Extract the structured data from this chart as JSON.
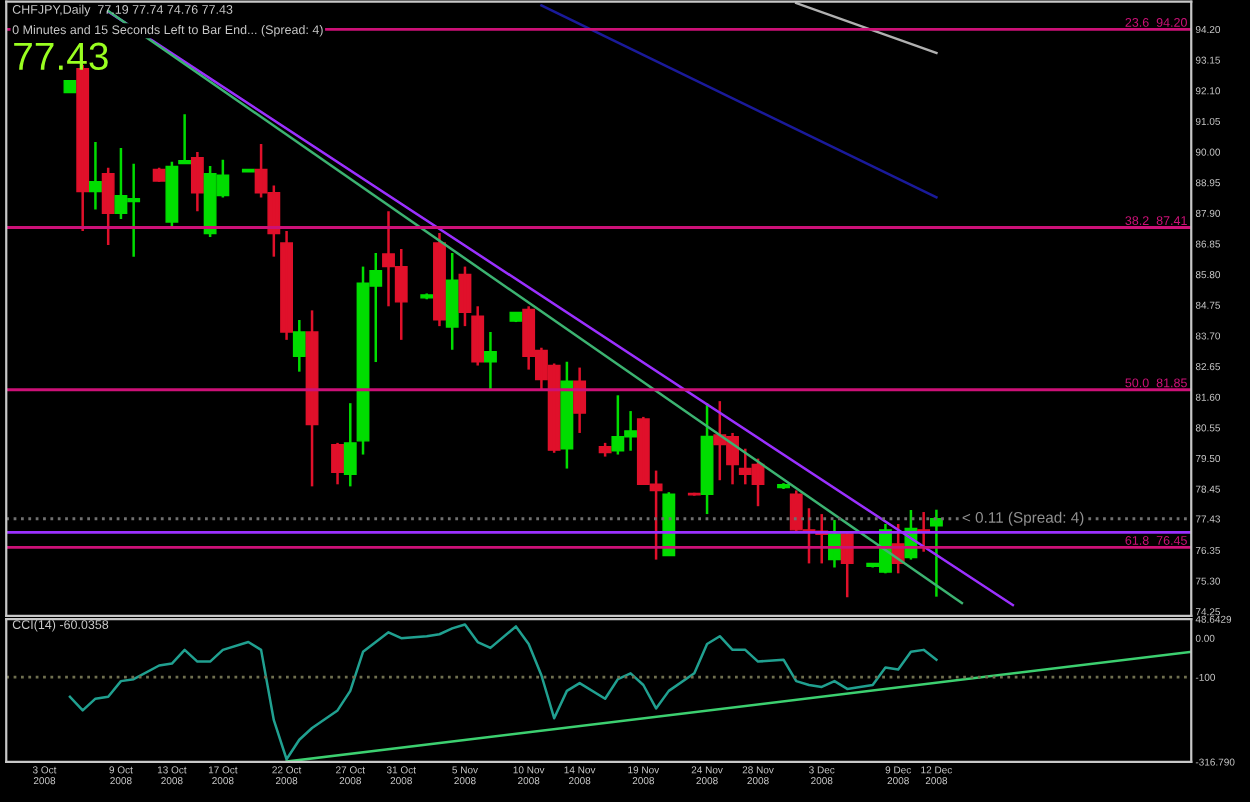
{
  "chart_data": [
    {
      "type": "candlestick",
      "title": "CHFJPY,Daily  77.19 77.74 74.76 77.43",
      "subtitle": "0 Minutes and 15 Seconds Left to Bar End... (Spread: 4)",
      "annotations": [
        "77.43",
        {
          "text": "< 0.11 (Spread: 4)",
          "x": "2008-12-14",
          "y": 77.43
        }
      ],
      "x": [
        "2008-10-05",
        "2008-10-06",
        "2008-10-07",
        "2008-10-08",
        "2008-10-09",
        "2008-10-10",
        "2008-10-12",
        "2008-10-13",
        "2008-10-14",
        "2008-10-15",
        "2008-10-16",
        "2008-10-17",
        "2008-10-19",
        "2008-10-20",
        "2008-10-21",
        "2008-10-22",
        "2008-10-23",
        "2008-10-24",
        "2008-10-26",
        "2008-10-27",
        "2008-10-28",
        "2008-10-29",
        "2008-10-30",
        "2008-10-31",
        "2008-11-02",
        "2008-11-03",
        "2008-11-04",
        "2008-11-05",
        "2008-11-06",
        "2008-11-07",
        "2008-11-09",
        "2008-11-10",
        "2008-11-11",
        "2008-11-12",
        "2008-11-13",
        "2008-11-14",
        "2008-11-16",
        "2008-11-17",
        "2008-11-18",
        "2008-11-19",
        "2008-11-20",
        "2008-11-21",
        "2008-11-23",
        "2008-11-24",
        "2008-11-25",
        "2008-11-26",
        "2008-11-27",
        "2008-11-28",
        "2008-11-30",
        "2008-12-01",
        "2008-12-02",
        "2008-12-03",
        "2008-12-04",
        "2008-12-05",
        "2008-12-07",
        "2008-12-08",
        "2008-12-09",
        "2008-12-10",
        "2008-12-11",
        "2008-12-12"
      ],
      "ohlc": [
        [
          92.03,
          92.44,
          92.03,
          92.44
        ],
        [
          92.85,
          92.98,
          87.29,
          88.64
        ],
        [
          88.64,
          90.34,
          88.03,
          88.98
        ],
        [
          89.25,
          89.46,
          86.81,
          87.9
        ],
        [
          87.9,
          90.13,
          87.7,
          88.5
        ],
        [
          88.3,
          89.59,
          86.41,
          88.4
        ],
        [
          89.4,
          89.46,
          88.98,
          89.0
        ],
        [
          87.6,
          89.66,
          87.42,
          89.5
        ],
        [
          89.6,
          91.29,
          89.59,
          89.7
        ],
        [
          89.8,
          90.0,
          87.97,
          88.6
        ],
        [
          87.2,
          89.52,
          87.08,
          89.25
        ],
        [
          88.5,
          89.73,
          88.44,
          89.2
        ],
        [
          89.32,
          89.4,
          89.32,
          89.4
        ],
        [
          89.4,
          90.27,
          88.44,
          88.6
        ],
        [
          88.6,
          88.85,
          86.41,
          87.2
        ],
        [
          86.88,
          87.29,
          83.56,
          83.83
        ],
        [
          83.0,
          84.24,
          82.47,
          83.83
        ],
        [
          83.83,
          84.57,
          78.54,
          80.66
        ],
        [
          79.97,
          80.03,
          78.61,
          79.02
        ],
        [
          78.95,
          81.39,
          78.54,
          80.03
        ],
        [
          80.1,
          86.07,
          79.63,
          85.5
        ],
        [
          85.4,
          86.54,
          82.8,
          85.93
        ],
        [
          86.5,
          87.97,
          84.71,
          86.07
        ],
        [
          86.07,
          86.67,
          83.56,
          84.86
        ],
        [
          85.0,
          85.15,
          84.95,
          85.1
        ],
        [
          86.88,
          87.22,
          84.03,
          84.25
        ],
        [
          84.0,
          86.54,
          83.22,
          85.6
        ],
        [
          85.8,
          86.07,
          84.03,
          84.5
        ],
        [
          84.37,
          84.71,
          82.68,
          82.81
        ],
        [
          82.81,
          83.83,
          81.86,
          83.15
        ],
        [
          84.2,
          84.51,
          84.17,
          84.5
        ],
        [
          84.6,
          84.71,
          82.54,
          83.0
        ],
        [
          83.2,
          83.29,
          81.86,
          82.2
        ],
        [
          82.68,
          82.75,
          79.69,
          79.78
        ],
        [
          79.83,
          82.81,
          79.15,
          82.14
        ],
        [
          82.14,
          82.61,
          80.37,
          81.05
        ],
        [
          79.9,
          80.03,
          79.56,
          79.7
        ],
        [
          79.76,
          81.66,
          79.63,
          80.24
        ],
        [
          80.24,
          81.12,
          79.76,
          80.44
        ],
        [
          80.85,
          80.92,
          78.61,
          78.61
        ],
        [
          78.61,
          79.08,
          76.03,
          78.4
        ],
        [
          76.17,
          78.34,
          76.17,
          78.27
        ],
        [
          78.3,
          78.32,
          78.22,
          78.25
        ],
        [
          78.27,
          81.39,
          77.59,
          80.25
        ],
        [
          80.3,
          81.46,
          78.75,
          79.97
        ],
        [
          80.24,
          80.37,
          78.61,
          79.29
        ],
        [
          79.15,
          79.83,
          78.61,
          78.95
        ],
        [
          79.29,
          79.49,
          77.86,
          78.61
        ],
        [
          78.5,
          78.65,
          78.45,
          78.6
        ],
        [
          78.27,
          78.4,
          76.98,
          77.05
        ],
        [
          77.05,
          77.79,
          75.9,
          77.0
        ],
        [
          77.0,
          77.59,
          75.9,
          76.9
        ],
        [
          76.03,
          77.39,
          75.76,
          76.91
        ],
        [
          76.91,
          76.98,
          74.74,
          75.9
        ],
        [
          75.8,
          75.9,
          75.76,
          75.9
        ],
        [
          75.6,
          77.25,
          75.56,
          77.05
        ],
        [
          76.57,
          77.25,
          75.56,
          75.9
        ],
        [
          76.1,
          77.73,
          76.03,
          77.1
        ],
        [
          77.05,
          77.66,
          76.3,
          77.0
        ],
        [
          77.19,
          77.74,
          74.76,
          77.43
        ]
      ],
      "series": [
        {
          "type": "line",
          "color": "#9b30ff",
          "x": [
            "2008-10-08",
            "2008-12-18"
          ],
          "values": [
            94.81,
            74.47
          ]
        },
        {
          "type": "line",
          "color": "#3cb371",
          "x": [
            "2008-10-08",
            "2008-12-14"
          ],
          "values": [
            94.83,
            74.54
          ]
        },
        {
          "type": "line",
          "color": "#1a1a9a",
          "x": [
            "2008-11-11",
            "2008-12-12"
          ],
          "values": [
            95.02,
            88.44
          ]
        },
        {
          "type": "line",
          "color": "#b0b0b0",
          "x": [
            "2008-12-01",
            "2008-12-12"
          ],
          "values": [
            95.1,
            93.39
          ]
        }
      ],
      "ref_lines": [
        {
          "axis": "y",
          "value": 94.2,
          "label": "23.6  94.20",
          "color": "#cc1177"
        },
        {
          "axis": "y",
          "value": 87.41,
          "label": "38.2  87.41",
          "color": "#cc1177"
        },
        {
          "axis": "y",
          "value": 81.85,
          "label": "50.0  81.85",
          "color": "#cc1177"
        },
        {
          "axis": "y",
          "value": 76.45,
          "label": "61.8  76.45",
          "color": "#cc1177"
        },
        {
          "axis": "y",
          "value": 77.43,
          "color": "#707070",
          "line_style": "dotted"
        },
        {
          "axis": "y",
          "value": 76.96,
          "color": "#9b30ff"
        }
      ],
      "xlim": [
        "2008-09-30",
        "2009-01-01"
      ],
      "ylim": [
        74.1,
        95.15
      ],
      "yticks": [
        {
          "value": 94.2,
          "label": "94.20"
        },
        93.15,
        {
          "value": 92.1,
          "label": "92.10"
        },
        91.05,
        {
          "value": 90.0,
          "label": "90.00"
        },
        88.95,
        {
          "value": 87.9,
          "label": "87.90"
        },
        86.85,
        {
          "value": 85.8,
          "label": "85.80"
        },
        84.75,
        {
          "value": 83.7,
          "label": "83.70"
        },
        82.65,
        {
          "value": 81.6,
          "label": "81.60"
        },
        80.55,
        {
          "value": 79.5,
          "label": "79.50"
        },
        78.45,
        77.43,
        76.35,
        {
          "value": 75.3,
          "label": "75.30"
        },
        74.25
      ],
      "tick_labels": "y"
    },
    {
      "type": "line",
      "title": "CCI(14) -60.0358",
      "x": [
        "2008-10-05",
        "2008-10-06",
        "2008-10-07",
        "2008-10-08",
        "2008-10-09",
        "2008-10-10",
        "2008-10-12",
        "2008-10-13",
        "2008-10-14",
        "2008-10-15",
        "2008-10-16",
        "2008-10-17",
        "2008-10-19",
        "2008-10-20",
        "2008-10-21",
        "2008-10-22",
        "2008-10-23",
        "2008-10-24",
        "2008-10-26",
        "2008-10-27",
        "2008-10-28",
        "2008-10-29",
        "2008-10-30",
        "2008-10-31",
        "2008-11-02",
        "2008-11-03",
        "2008-11-04",
        "2008-11-05",
        "2008-11-06",
        "2008-11-07",
        "2008-11-09",
        "2008-11-10",
        "2008-11-11",
        "2008-11-12",
        "2008-11-13",
        "2008-11-14",
        "2008-11-16",
        "2008-11-17",
        "2008-11-18",
        "2008-11-19",
        "2008-11-20",
        "2008-11-21",
        "2008-11-23",
        "2008-11-24",
        "2008-11-25",
        "2008-11-26",
        "2008-11-27",
        "2008-11-28",
        "2008-11-30",
        "2008-12-01",
        "2008-12-02",
        "2008-12-03",
        "2008-12-04",
        "2008-12-05",
        "2008-12-07",
        "2008-12-08",
        "2008-12-09",
        "2008-12-10",
        "2008-12-11",
        "2008-12-12"
      ],
      "series": [
        {
          "color": "#20a090",
          "values": [
            -150,
            -185,
            -155,
            -150,
            -110,
            -105,
            -70,
            -65,
            -30,
            -60,
            -60,
            -30,
            -10,
            -30,
            -210,
            -310,
            -260,
            -230,
            -185,
            -135,
            -35,
            -10,
            15,
            0,
            5,
            10,
            25,
            35,
            -10,
            -25,
            30,
            -15,
            -95,
            -205,
            -135,
            -115,
            -155,
            -105,
            -90,
            -120,
            -180,
            -135,
            -90,
            -15,
            5,
            -30,
            -30,
            -60,
            -55,
            -110,
            -120,
            -125,
            -110,
            -130,
            -120,
            -75,
            -80,
            -35,
            -30,
            -55
          ]
        },
        {
          "color": "#3cd070",
          "x": [
            "2008-10-22",
            "2009-01-01"
          ],
          "values": [
            -316,
            -35
          ]
        }
      ],
      "ref_lines": [
        {
          "axis": "y",
          "value": -100,
          "color": "#707050",
          "line_style": "dotted"
        }
      ],
      "xlim": [
        "2008-09-30",
        "2009-01-01"
      ],
      "ylim": [
        -316.79,
        48.6429
      ],
      "xticks": [
        {
          "value": "2008-10-03",
          "label": "3 Oct 2008"
        },
        {
          "value": "2008-10-09",
          "label": "9 Oct 2008"
        },
        {
          "value": "2008-10-13",
          "label": "13 Oct 2008"
        },
        {
          "value": "2008-10-17",
          "label": "17 Oct 2008"
        },
        {
          "value": "2008-10-22",
          "label": "22 Oct 2008"
        },
        {
          "value": "2008-10-27",
          "label": "27 Oct 2008"
        },
        {
          "value": "2008-10-31",
          "label": "31 Oct 2008"
        },
        {
          "value": "2008-11-05",
          "label": "5 Nov 2008"
        },
        {
          "value": "2008-11-10",
          "label": "10 Nov 2008"
        },
        {
          "value": "2008-11-14",
          "label": "14 Nov 2008"
        },
        {
          "value": "2008-11-19",
          "label": "19 Nov 2008"
        },
        {
          "value": "2008-11-24",
          "label": "24 Nov 2008"
        },
        {
          "value": "2008-11-28",
          "label": "28 Nov 2008"
        },
        {
          "value": "2008-12-03",
          "label": "3 Dec 2008"
        },
        {
          "value": "2008-12-09",
          "label": "9 Dec 2008"
        },
        {
          "value": "2008-12-12",
          "label": "12 Dec 2008"
        }
      ],
      "yticks": [
        48.6429,
        {
          "value": 0,
          "label": "0.00"
        },
        -100,
        {
          "value": -316.79,
          "label": "-316.790"
        }
      ]
    }
  ]
}
